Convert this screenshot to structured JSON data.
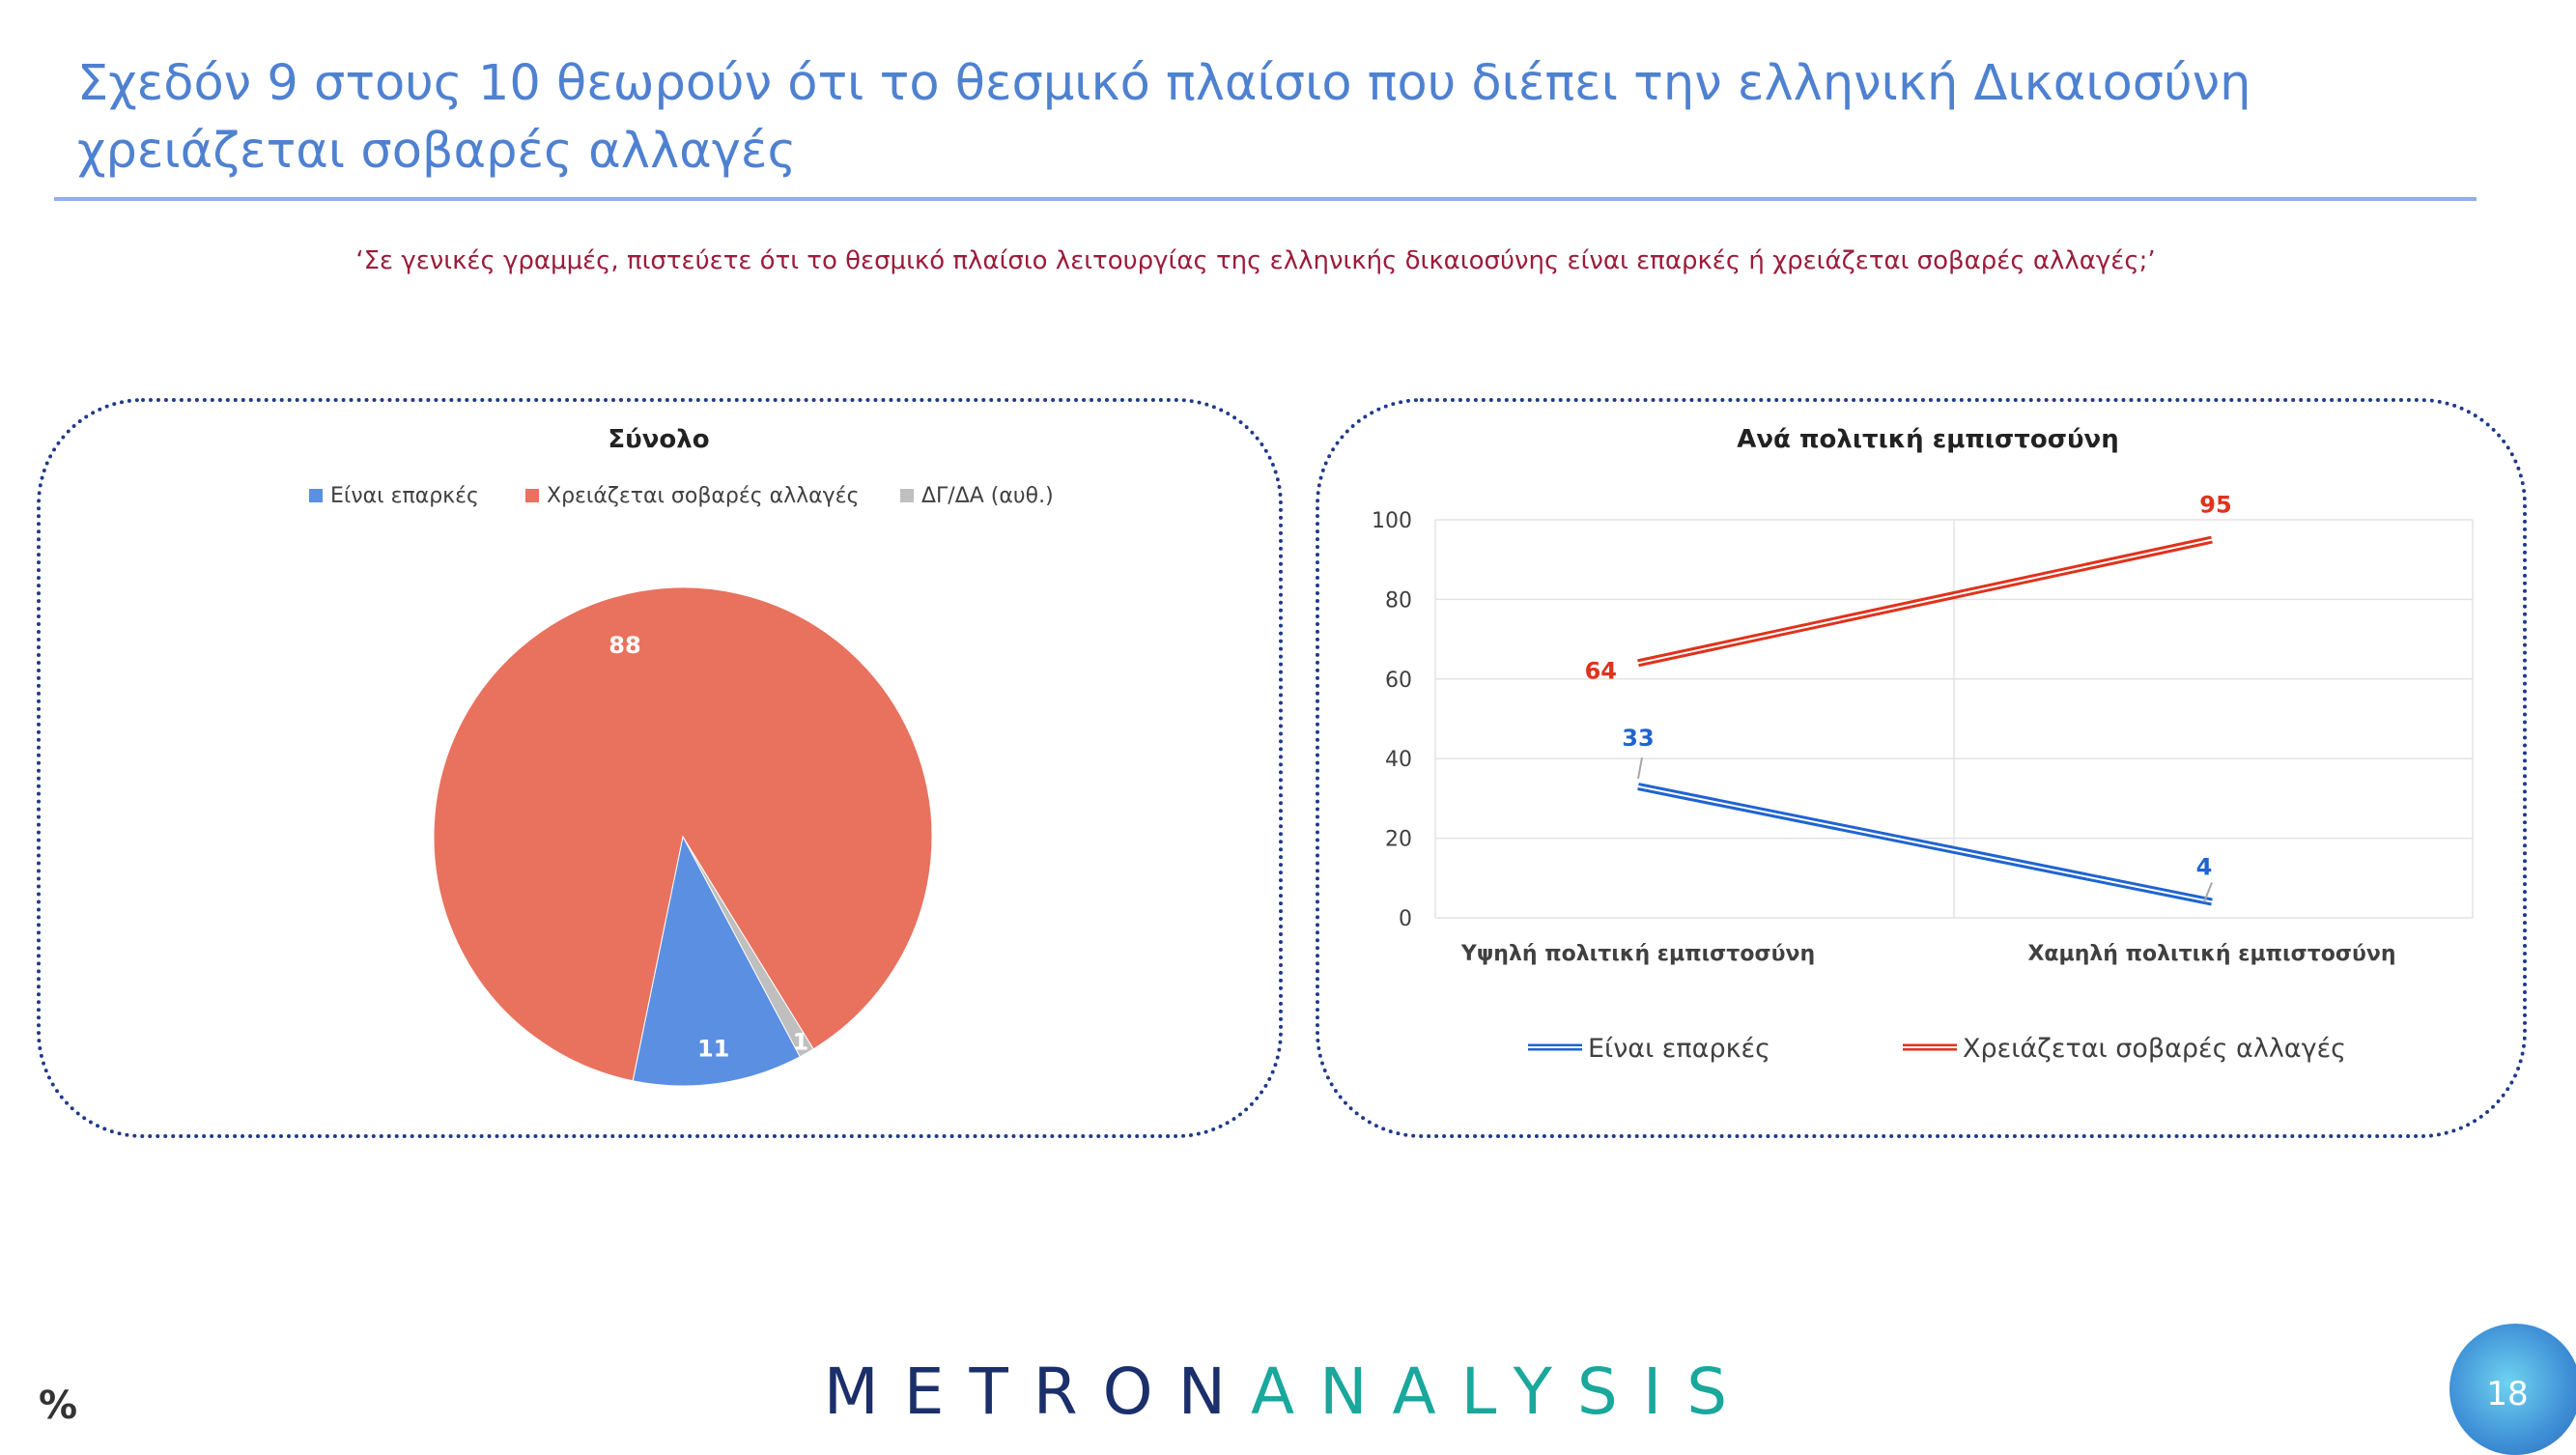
{
  "slide": {
    "title": "Σχεδόν 9 στους 10 θεωρούν ότι το θεσμικό πλαίσιο που διέπει την ελληνική Δικαιοσύνη χρειάζεται σοβαρές αλλαγές",
    "question": "‘Σε γενικές γραμμές, πιστεύετε ότι το θεσμικό πλαίσιο λειτουργίας της ελληνικής δικαιοσύνης είναι επαρκές ή χρειάζεται σοβαρές αλλαγές;’",
    "percent_sign": "%",
    "logo_part1": "METRON",
    "logo_part2": "ANALYSIS",
    "page_number": "18"
  },
  "colors": {
    "blue": "#5b8fe2",
    "red": "#e8725e",
    "grey": "#bfbfbf",
    "line_blue": "#1f64d1",
    "line_red": "#e0321c",
    "title_blue": "#4f81d1",
    "question_red": "#9b1c3a"
  },
  "chart_data": [
    {
      "type": "pie",
      "title": "Σύνολο",
      "legend_position": "top",
      "categories": [
        "Είναι επαρκές",
        "Χρειάζεται σοβαρές αλλαγές",
        "ΔΓ/ΔΑ (αυθ.)"
      ],
      "values": [
        11,
        88,
        1
      ]
    },
    {
      "type": "line",
      "title": "Ανά πολιτική εμπιστοσύνη",
      "legend_position": "bottom",
      "categories": [
        "Υψηλή πολιτική εμπιστοσύνη",
        "Χαμηλή πολιτική εμπιστοσύνη"
      ],
      "ylim": [
        0,
        100
      ],
      "yticks": [
        0,
        20,
        40,
        60,
        80,
        100
      ],
      "grid": true,
      "series": [
        {
          "name": "Είναι επαρκές",
          "values": [
            33,
            4
          ]
        },
        {
          "name": "Χρειάζεται σοβαρές αλλαγές",
          "values": [
            64,
            95
          ]
        }
      ]
    }
  ]
}
